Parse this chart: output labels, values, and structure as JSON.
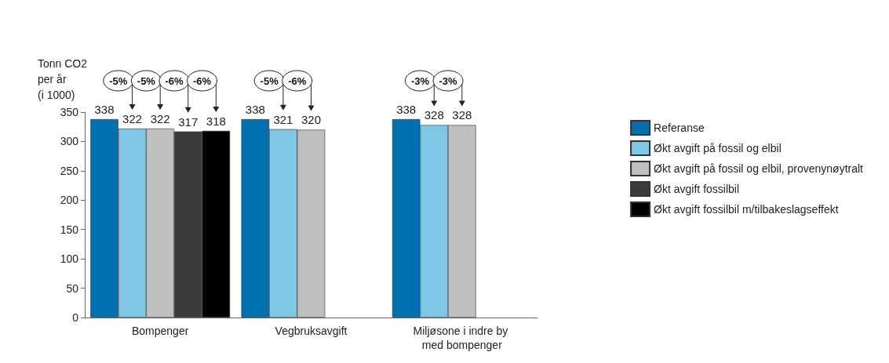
{
  "chart_data": {
    "type": "bar",
    "ylabel": "Tonn CO2\nper år\n(i 1000)",
    "categories": [
      "Bompenger",
      "Vegbruksavgift",
      "Miljøsone i indre by med bompenger"
    ],
    "series": [
      {
        "name": "Referanse",
        "color": "#0070b0",
        "values": [
          338,
          338,
          338
        ]
      },
      {
        "name": "Økt avgift på fossil og elbil",
        "color": "#7ec8e6",
        "values": [
          322,
          321,
          328
        ]
      },
      {
        "name": "Økt avgift på fossil og elbil, provenynøytralt",
        "color": "#bfbfbf",
        "values": [
          322,
          320,
          328
        ]
      },
      {
        "name": "Økt avgift fossilbil",
        "color": "#3b3b3b",
        "values": [
          317,
          null,
          null
        ]
      },
      {
        "name": "Økt avgift fossilbil m/tilbakeslagseffekt",
        "color": "#000000",
        "values": [
          318,
          null,
          null
        ]
      }
    ],
    "ylim": [
      0,
      350
    ],
    "yticks": [
      0,
      50,
      100,
      150,
      200,
      250,
      300,
      350
    ],
    "grid": false,
    "legend": "right",
    "data_labels": true,
    "annotations": [
      "-5%",
      "-5%",
      "-6%",
      "-6%",
      "-5%",
      "-6%",
      "-3%",
      "-3%"
    ]
  }
}
